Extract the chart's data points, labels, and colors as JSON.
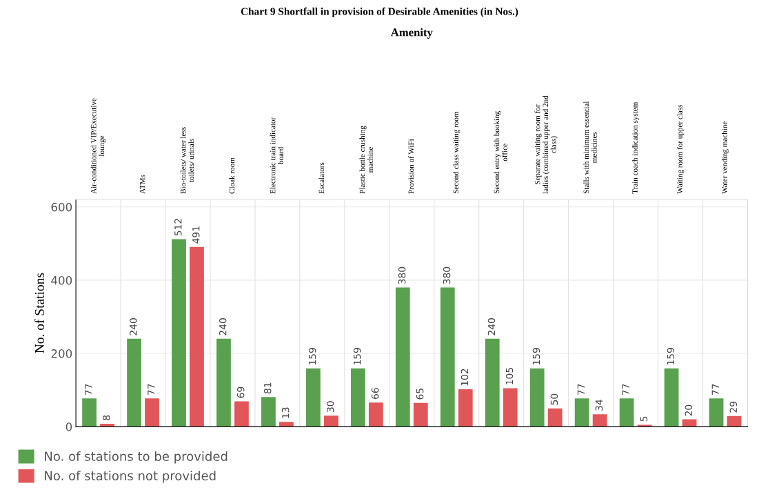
{
  "chart_data": {
    "type": "bar",
    "title": "Chart 9 Shortfall in provision of Desirable Amenities (in Nos.)",
    "xlabel": "Amenity",
    "ylabel": "No. of Stations",
    "categories": [
      "Air-conditioned VIP/Executive lounge",
      "ATMs",
      "Bio-toilets/ water less toilets/ urinals",
      "Cloak room",
      "Electronic train indicator board",
      "Escalators",
      "Plastic bottle crushing machine",
      "Provision of WiFi",
      "Second class waiting room",
      "Second entry with booking office",
      "Separate waiting room for ladies (combined upper and 2nd class)",
      "Stalls with minimum essential medicines",
      "Train coach indication system",
      "Waiting room for upper class",
      "Water vending machine"
    ],
    "series": [
      {
        "name": "No. of stations to be provided",
        "color": "#59a14f",
        "values": [
          77,
          240,
          512,
          240,
          81,
          159,
          159,
          380,
          380,
          240,
          159,
          77,
          77,
          159,
          77
        ]
      },
      {
        "name": "No. of stations not provided",
        "color": "#e15759",
        "values": [
          8,
          77,
          491,
          69,
          13,
          30,
          66,
          65,
          102,
          105,
          50,
          34,
          5,
          20,
          29
        ]
      }
    ],
    "ylim": [
      0,
      620
    ],
    "yticks": [
      0,
      200,
      400,
      600
    ],
    "grid": "y",
    "legend": "bottom left",
    "data_labels": true
  }
}
